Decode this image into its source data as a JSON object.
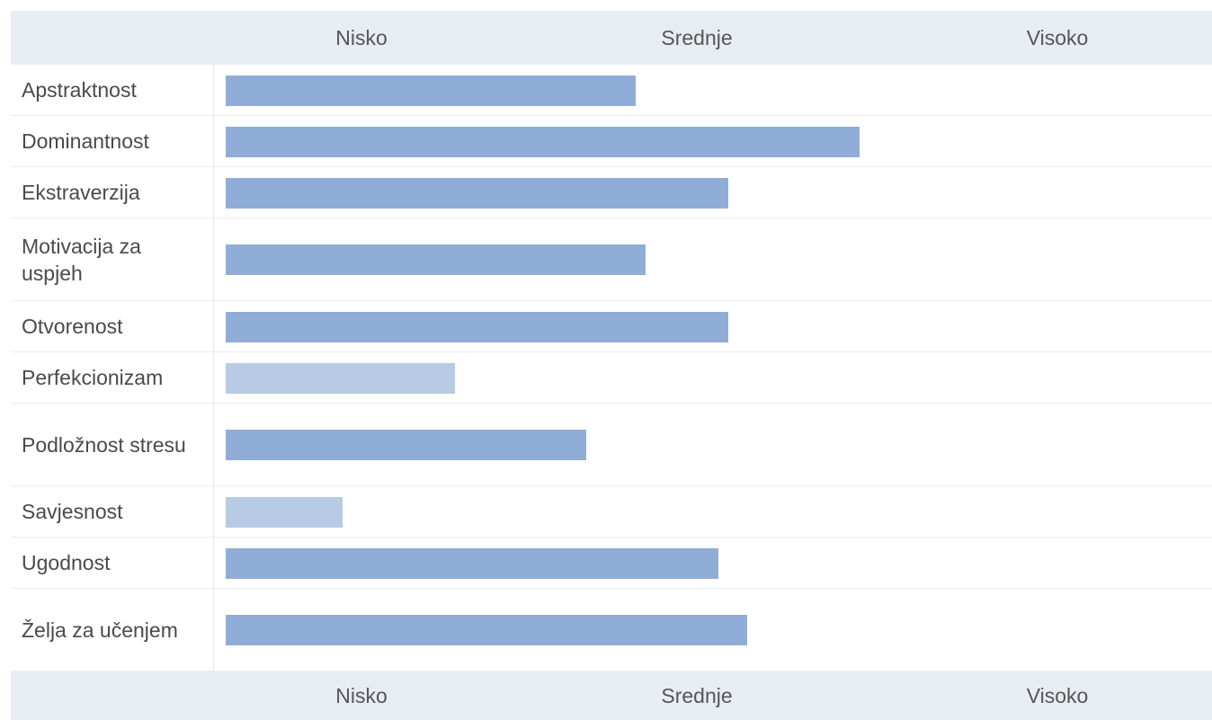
{
  "chart_data": {
    "type": "bar",
    "orientation": "horizontal",
    "levels": [
      "Nisko",
      "Srednje",
      "Visoko"
    ],
    "categories": [
      "Apstraktnost",
      "Dominantnost",
      "Ekstraverzija",
      "Motivacija za uspjeh",
      "Otvorenost",
      "Perfekcionizam",
      "Podložnost stresu",
      "Savjesnost",
      "Ugodnost",
      "Želja za učenjem"
    ],
    "values": [
      0.42,
      0.65,
      0.515,
      0.43,
      0.515,
      0.235,
      0.37,
      0.12,
      0.505,
      0.535
    ],
    "xlim": [
      0,
      1
    ],
    "colors": {
      "bar": "#8fadd6",
      "bar_light": "#b7cbe4",
      "header_bg": "#e8edf4"
    },
    "light_bars": [
      "Perfekcionizam",
      "Savjesnost"
    ]
  }
}
